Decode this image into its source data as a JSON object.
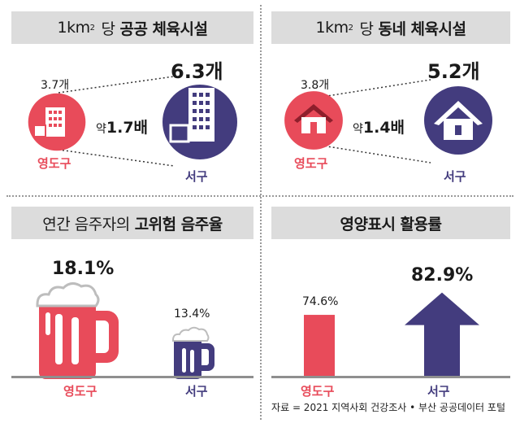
{
  "colors": {
    "red": "#e84b5a",
    "navy": "#433c7e",
    "header_bg": "#dcdcdc",
    "baseline": "#8f8f8f"
  },
  "panels": {
    "public": {
      "title_prefix": "1km",
      "title_sup": "2",
      "title_light": "당",
      "title_bold": "공공 체육시설",
      "left_value": "3.7개",
      "right_value": "6.3개",
      "ratio_prefix": "약",
      "ratio_value": "1.7배",
      "left_district": "영도구",
      "right_district": "서구",
      "left_icon": "building-icon",
      "right_icon": "building-icon"
    },
    "neighborhood": {
      "title_prefix": "1km",
      "title_sup": "2",
      "title_light": "당",
      "title_bold": "동네 체육시설",
      "left_value": "3.8개",
      "right_value": "5.2개",
      "ratio_prefix": "약",
      "ratio_value": "1.4배",
      "left_district": "영도구",
      "right_district": "서구",
      "left_icon": "house-icon",
      "right_icon": "house-icon"
    },
    "drinking": {
      "title_light": "연간 음주자의",
      "title_bold": "고위험 음주율",
      "left_value": "18.1%",
      "right_value": "13.4%",
      "left_district": "영도구",
      "right_district": "서구",
      "icon": "beer-mug-icon"
    },
    "nutrition": {
      "title_bold": "영양표시 활용률",
      "left_value": "74.6%",
      "right_value": "82.9%",
      "left_district": "영도구",
      "right_district": "서구",
      "icon": "up-arrow-icon"
    }
  },
  "source": "자료 = 2021 지역사회 건강조사 • 부산 공공데이터 포털",
  "chart_data": [
    {
      "type": "bar",
      "title": "1km² 당 공공 체육시설",
      "categories": [
        "영도구",
        "서구"
      ],
      "values": [
        3.7,
        6.3
      ],
      "unit": "개",
      "annotation": "약1.7배"
    },
    {
      "type": "bar",
      "title": "1km² 당 동네 체육시설",
      "categories": [
        "영도구",
        "서구"
      ],
      "values": [
        3.8,
        5.2
      ],
      "unit": "개",
      "annotation": "약1.4배"
    },
    {
      "type": "bar",
      "title": "연간 음주자의 고위험 음주율",
      "categories": [
        "영도구",
        "서구"
      ],
      "values": [
        18.1,
        13.4
      ],
      "unit": "%"
    },
    {
      "type": "bar",
      "title": "영양표시 활용률",
      "categories": [
        "영도구",
        "서구"
      ],
      "values": [
        74.6,
        82.9
      ],
      "unit": "%"
    }
  ]
}
